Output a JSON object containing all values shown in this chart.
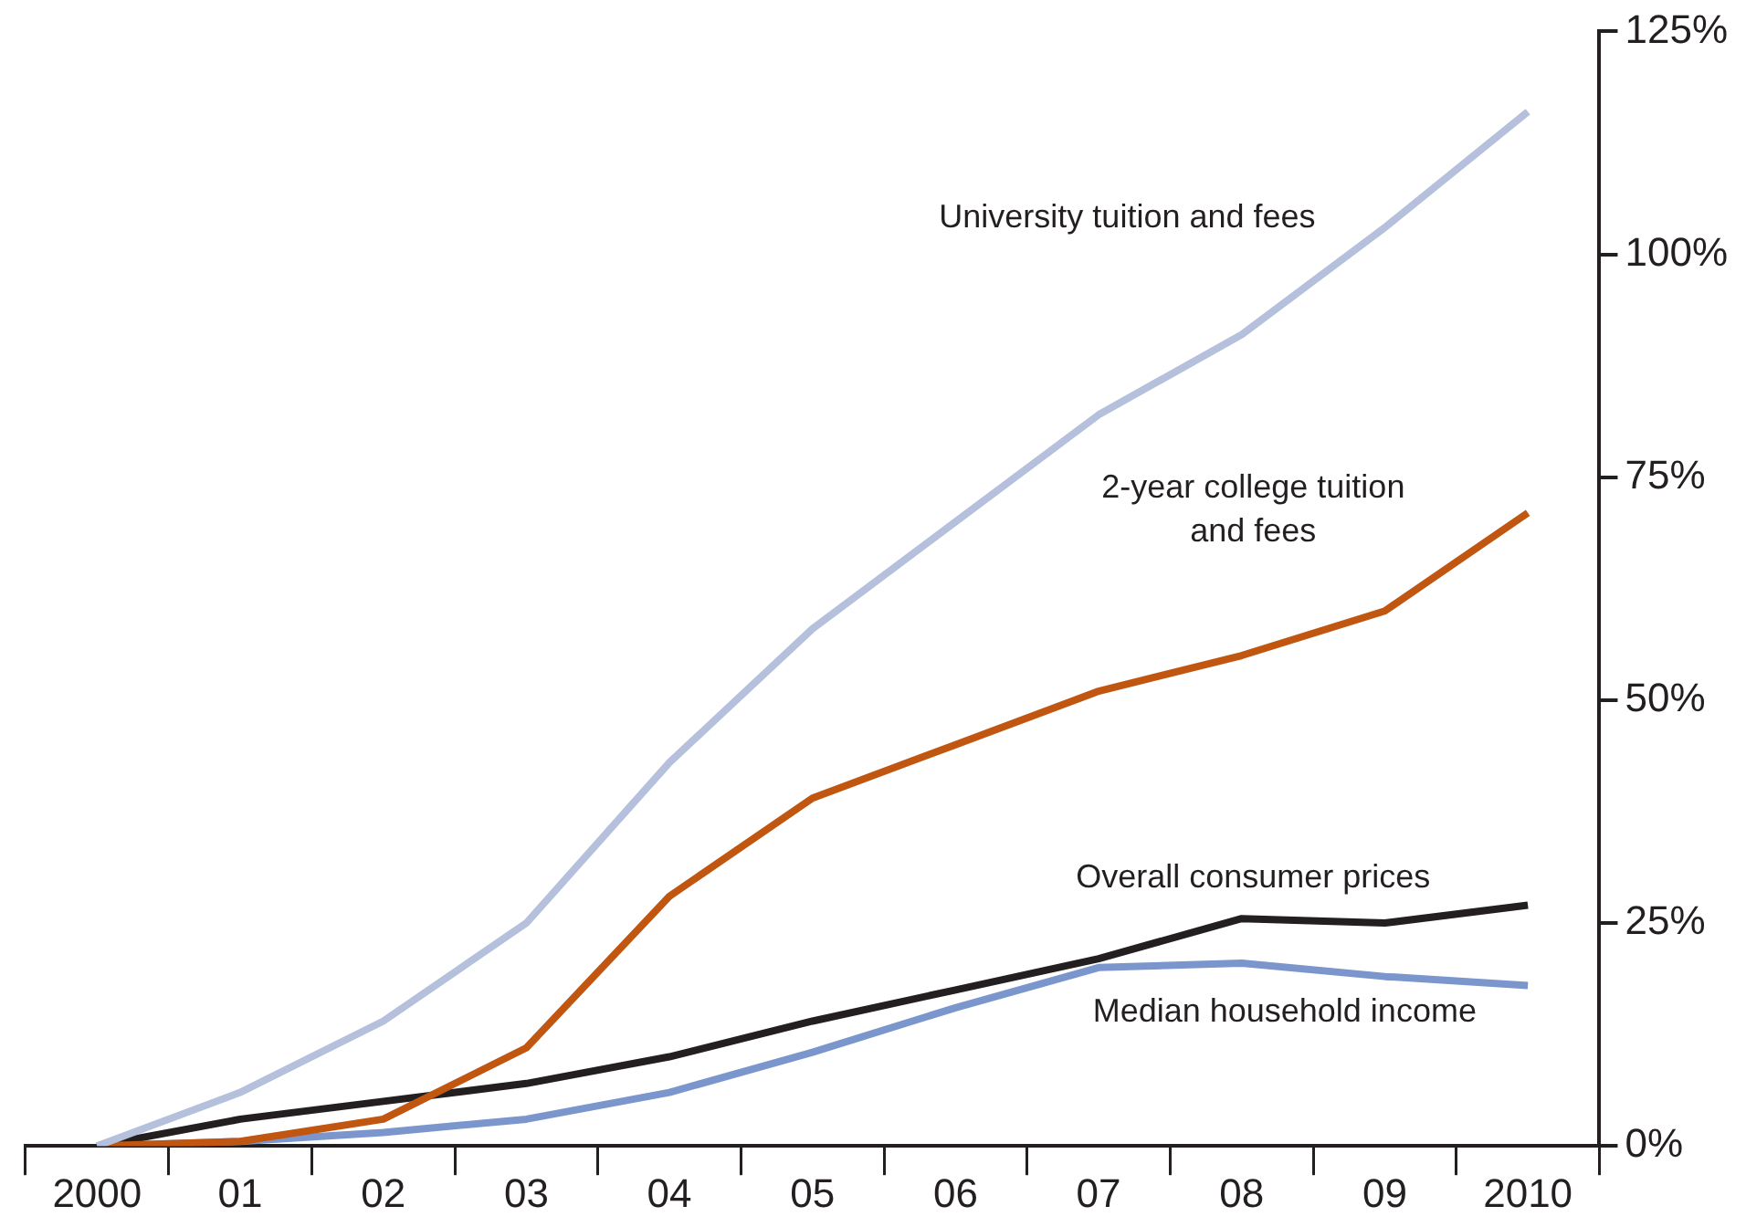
{
  "chart_data": {
    "type": "line",
    "categories": [
      "2000",
      "01",
      "02",
      "03",
      "04",
      "05",
      "06",
      "07",
      "08",
      "09",
      "2010"
    ],
    "ylim": [
      0,
      125
    ],
    "yticks": [
      {
        "value": 0,
        "label": "0%"
      },
      {
        "value": 25,
        "label": "25%"
      },
      {
        "value": 50,
        "label": "50%"
      },
      {
        "value": 75,
        "label": "75%"
      },
      {
        "value": 100,
        "label": "100%"
      },
      {
        "value": 125,
        "label": "125%"
      }
    ],
    "grid": false,
    "legend": false,
    "marker": "none",
    "line_style": "solid",
    "series": [
      {
        "name": "University tuition and fees",
        "color": "#b4c0dc",
        "values": [
          0,
          6,
          14,
          25,
          43,
          58,
          70,
          82,
          91,
          103,
          116
        ]
      },
      {
        "name": "2-year college tuition and fees",
        "color": "#c0560f",
        "values": [
          0,
          0.5,
          3,
          11,
          28,
          39,
          45,
          51,
          55,
          60,
          71
        ]
      },
      {
        "name": "Overall consumer prices",
        "color": "#231f20",
        "values": [
          0,
          3,
          5,
          7,
          10,
          14,
          17.5,
          21,
          25.5,
          25,
          27
        ]
      },
      {
        "name": "Median household income",
        "color": "#7b96cc",
        "values": [
          0,
          0.5,
          1.5,
          3,
          6,
          10.5,
          15.5,
          20,
          20.5,
          19,
          18
        ]
      }
    ]
  }
}
